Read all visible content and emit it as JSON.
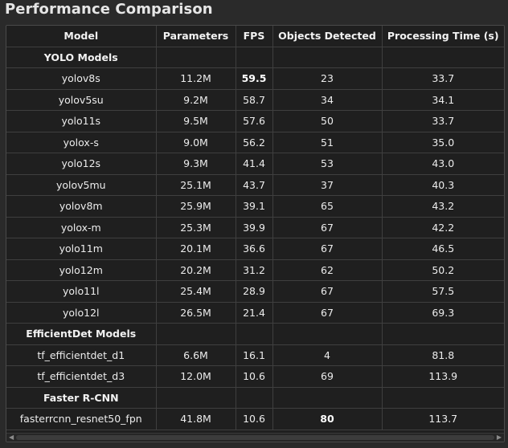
{
  "page": {
    "title": "Performance Comparison"
  },
  "table": {
    "headers": [
      "Model",
      "Parameters",
      "FPS",
      "Objects Detected",
      "Processing Time (s)"
    ],
    "groups": [
      {
        "label": "YOLO Models",
        "rows": [
          {
            "model": "yolov8s",
            "parameters": "11.2M",
            "fps": "59.5",
            "objects": "23",
            "time": "33.7",
            "bold": [
              "fps"
            ]
          },
          {
            "model": "yolov5su",
            "parameters": "9.2M",
            "fps": "58.7",
            "objects": "34",
            "time": "34.1",
            "bold": []
          },
          {
            "model": "yolo11s",
            "parameters": "9.5M",
            "fps": "57.6",
            "objects": "50",
            "time": "33.7",
            "bold": []
          },
          {
            "model": "yolox-s",
            "parameters": "9.0M",
            "fps": "56.2",
            "objects": "51",
            "time": "35.0",
            "bold": []
          },
          {
            "model": "yolo12s",
            "parameters": "9.3M",
            "fps": "41.4",
            "objects": "53",
            "time": "43.0",
            "bold": []
          },
          {
            "model": "yolov5mu",
            "parameters": "25.1M",
            "fps": "43.7",
            "objects": "37",
            "time": "40.3",
            "bold": []
          },
          {
            "model": "yolov8m",
            "parameters": "25.9M",
            "fps": "39.1",
            "objects": "65",
            "time": "43.2",
            "bold": []
          },
          {
            "model": "yolox-m",
            "parameters": "25.3M",
            "fps": "39.9",
            "objects": "67",
            "time": "42.2",
            "bold": []
          },
          {
            "model": "yolo11m",
            "parameters": "20.1M",
            "fps": "36.6",
            "objects": "67",
            "time": "46.5",
            "bold": []
          },
          {
            "model": "yolo12m",
            "parameters": "20.2M",
            "fps": "31.2",
            "objects": "62",
            "time": "50.2",
            "bold": []
          },
          {
            "model": "yolo11l",
            "parameters": "25.4M",
            "fps": "28.9",
            "objects": "67",
            "time": "57.5",
            "bold": []
          },
          {
            "model": "yolo12l",
            "parameters": "26.5M",
            "fps": "21.4",
            "objects": "67",
            "time": "69.3",
            "bold": []
          }
        ]
      },
      {
        "label": "EfficientDet Models",
        "rows": [
          {
            "model": "tf_efficientdet_d1",
            "parameters": "6.6M",
            "fps": "16.1",
            "objects": "4",
            "time": "81.8",
            "bold": []
          },
          {
            "model": "tf_efficientdet_d3",
            "parameters": "12.0M",
            "fps": "10.6",
            "objects": "69",
            "time": "113.9",
            "bold": []
          }
        ]
      },
      {
        "label": "Faster R-CNN",
        "rows": [
          {
            "model": "fasterrcnn_resnet50_fpn",
            "parameters": "41.8M",
            "fps": "10.6",
            "objects": "80",
            "time": "113.7",
            "bold": [
              "objects"
            ]
          }
        ]
      }
    ]
  },
  "scrollbar": {
    "left_icon": "arrow-left-icon",
    "right_icon": "arrow-right-icon"
  }
}
